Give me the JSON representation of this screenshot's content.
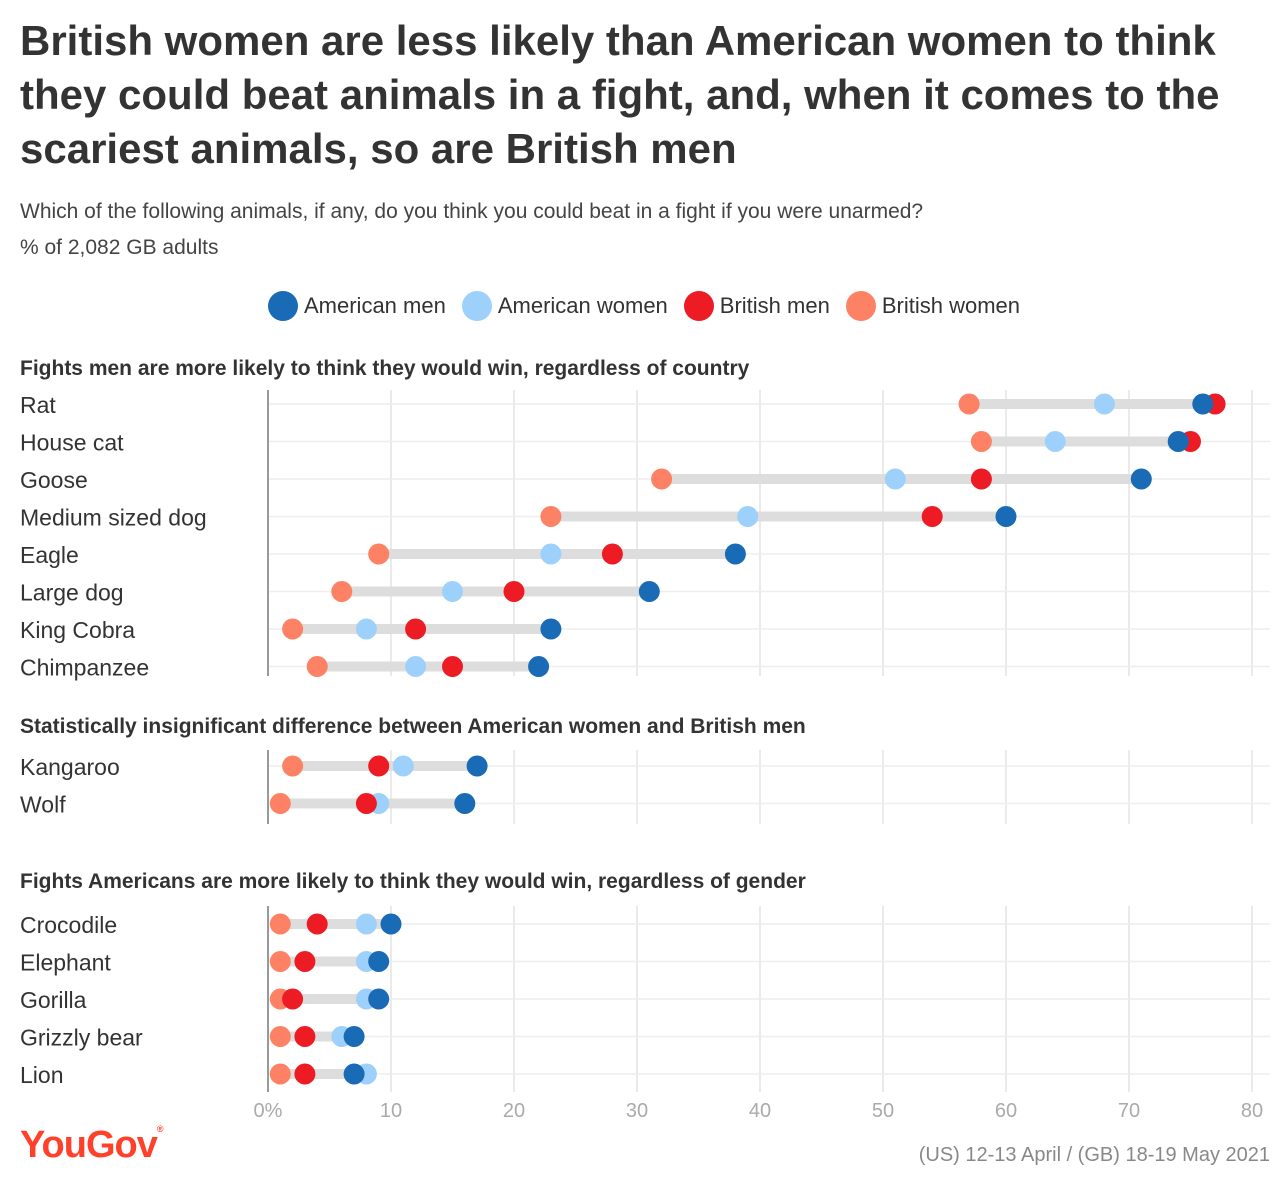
{
  "title": "British women are less likely than American women to think they could beat animals in a fight, and, when it comes to the scariest animals, so are British men",
  "subtitle": "Which of the following animals, if any, do you think you could beat in a fight if you were unarmed?",
  "note": "% of 2,082 GB adults",
  "brand": "YouGov",
  "source": "(US) 12-13 April / (GB) 18-19 May 2021",
  "legend": [
    {
      "name": "American men",
      "color": "#1a6bb5"
    },
    {
      "name": "American women",
      "color": "#9dd1fc"
    },
    {
      "name": "British men",
      "color": "#ed1c24"
    },
    {
      "name": "British women",
      "color": "#fd8164"
    }
  ],
  "chart_data": {
    "type": "dot-range",
    "xlim": [
      0,
      80
    ],
    "x_ticks": [
      "0%",
      "10",
      "20",
      "30",
      "40",
      "50",
      "60",
      "70",
      "80"
    ],
    "series_keys": [
      "american_men",
      "american_women",
      "british_men",
      "british_women"
    ],
    "colors": {
      "american_men": "#1a6bb5",
      "american_women": "#9dd1fc",
      "british_men": "#ed1c24",
      "british_women": "#fd8164"
    },
    "panels": [
      {
        "heading": "Fights men are more likely to think they would win, regardless of country",
        "rows": [
          {
            "label": "Rat",
            "american_men": 76,
            "american_women": 68,
            "british_men": 77,
            "british_women": 57
          },
          {
            "label": "House cat",
            "american_men": 74,
            "american_women": 64,
            "british_men": 75,
            "british_women": 58
          },
          {
            "label": "Goose",
            "american_men": 71,
            "american_women": 51,
            "british_men": 58,
            "british_women": 32
          },
          {
            "label": "Medium sized dog",
            "american_men": 60,
            "american_women": 39,
            "british_men": 54,
            "british_women": 23
          },
          {
            "label": "Eagle",
            "american_men": 38,
            "american_women": 23,
            "british_men": 28,
            "british_women": 9
          },
          {
            "label": "Large dog",
            "american_men": 31,
            "american_women": 15,
            "british_men": 20,
            "british_women": 6
          },
          {
            "label": "King Cobra",
            "american_men": 23,
            "american_women": 8,
            "british_men": 12,
            "british_women": 2
          },
          {
            "label": "Chimpanzee",
            "american_men": 22,
            "american_women": 12,
            "british_men": 15,
            "british_women": 4
          }
        ]
      },
      {
        "heading": "Statistically insignificant difference between American women and British men",
        "rows": [
          {
            "label": "Kangaroo",
            "american_men": 17,
            "american_women": 11,
            "british_men": 9,
            "british_women": 2
          },
          {
            "label": "Wolf",
            "american_men": 16,
            "american_women": 9,
            "british_men": 8,
            "british_women": 1
          }
        ]
      },
      {
        "heading": "Fights Americans are more likely to think they would win, regardless of gender",
        "rows": [
          {
            "label": "Crocodile",
            "american_men": 10,
            "american_women": 8,
            "british_men": 4,
            "british_women": 1
          },
          {
            "label": "Elephant",
            "american_men": 9,
            "american_women": 8,
            "british_men": 3,
            "british_women": 1
          },
          {
            "label": "Gorilla",
            "american_men": 9,
            "american_women": 8,
            "british_men": 2,
            "british_women": 1
          },
          {
            "label": "Grizzly bear",
            "american_men": 7,
            "american_women": 6,
            "british_men": 3,
            "british_women": 1
          },
          {
            "label": "Lion",
            "american_men": 7,
            "american_women": 8,
            "british_men": 3,
            "british_women": 1
          }
        ]
      }
    ]
  }
}
